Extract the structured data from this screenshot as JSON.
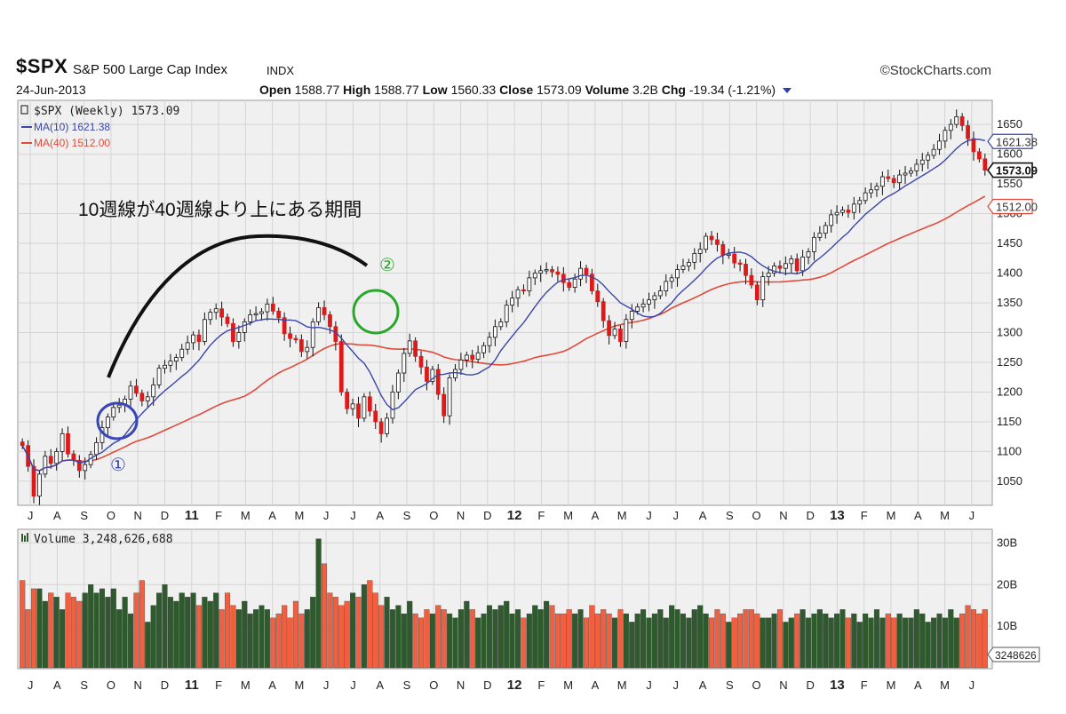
{
  "header": {
    "ticker": "$SPX",
    "name": "S&P 500 Large Cap Index",
    "exchange": "INDX",
    "brand": "©StockCharts.com",
    "date": "24-Jun-2013",
    "open_label": "Open",
    "open": "1588.77",
    "high_label": "High",
    "high": "1588.77",
    "low_label": "Low",
    "low": "1560.33",
    "close_label": "Close",
    "close": "1573.09",
    "volume_label": "Volume",
    "volume": "3.2B",
    "chg_label": "Chg",
    "chg": "-19.34 (-1.21%)"
  },
  "legend": {
    "price": "$SPX (Weekly) 1573.09",
    "ma10": "MA(10) 1621.38",
    "ma40": "MA(40) 1512.00",
    "volume": "Volume 3,248,626,688"
  },
  "annotations": {
    "text": "10週線が40週線より上にある期間",
    "marker1": "①",
    "marker2": "②"
  },
  "colors": {
    "up_candle": "#ffffff",
    "down_candle": "#dd1a1a",
    "ma10": "#3a46a8",
    "ma40": "#e04a3a",
    "vol_up": "#2e5a2e",
    "vol_down": "#f06040",
    "circle1": "#3a46b8",
    "circle2": "#2aa62a",
    "grid": "#d4d4d4",
    "panel_bg": "#f0f0f0"
  },
  "chart_data": {
    "type": "line",
    "title": "$SPX (Weekly) 1573.09",
    "y_ticks": [
      1050,
      1100,
      1150,
      1200,
      1250,
      1300,
      1350,
      1400,
      1450,
      1500,
      1550,
      1600,
      1650
    ],
    "y_range": [
      1020,
      1680
    ],
    "x_month_labels": [
      "J",
      "A",
      "S",
      "O",
      "N",
      "D",
      "11",
      "F",
      "M",
      "A",
      "M",
      "J",
      "J",
      "A",
      "S",
      "O",
      "N",
      "D",
      "12",
      "F",
      "M",
      "A",
      "M",
      "J",
      "J",
      "A",
      "S",
      "O",
      "N",
      "D",
      "13",
      "F",
      "M",
      "A",
      "M",
      "J"
    ],
    "last_value_tags": [
      {
        "label": "1621.38",
        "value": 1621.38,
        "series": "ma10"
      },
      {
        "label": "1573.09",
        "value": 1573.09,
        "series": "price"
      },
      {
        "label": "1512.00",
        "value": 1512.0,
        "series": "ma40"
      }
    ],
    "weekly_close": [
      1110,
      1075,
      1025,
      1062,
      1092,
      1080,
      1100,
      1130,
      1096,
      1085,
      1068,
      1078,
      1095,
      1115,
      1140,
      1158,
      1174,
      1178,
      1188,
      1210,
      1198,
      1185,
      1192,
      1212,
      1240,
      1245,
      1252,
      1258,
      1272,
      1283,
      1296,
      1285,
      1322,
      1334,
      1340,
      1326,
      1315,
      1285,
      1300,
      1318,
      1330,
      1332,
      1335,
      1348,
      1336,
      1325,
      1298,
      1290,
      1288,
      1268,
      1275,
      1318,
      1342,
      1330,
      1310,
      1285,
      1200,
      1172,
      1180,
      1156,
      1192,
      1168,
      1150,
      1130,
      1156,
      1200,
      1232,
      1265,
      1286,
      1260,
      1242,
      1218,
      1238,
      1196,
      1160,
      1224,
      1238,
      1254,
      1262,
      1255,
      1266,
      1278,
      1292,
      1310,
      1318,
      1346,
      1358,
      1372,
      1370,
      1392,
      1400,
      1404,
      1406,
      1402,
      1398,
      1384,
      1376,
      1390,
      1408,
      1398,
      1370,
      1352,
      1320,
      1295,
      1306,
      1285,
      1322,
      1336,
      1343,
      1348,
      1355,
      1362,
      1370,
      1386,
      1392,
      1406,
      1412,
      1418,
      1433,
      1440,
      1462,
      1456,
      1448,
      1430,
      1432,
      1417,
      1415,
      1396,
      1380,
      1355,
      1394,
      1400,
      1412,
      1408,
      1416,
      1424,
      1404,
      1427,
      1436,
      1460,
      1467,
      1480,
      1498,
      1502,
      1506,
      1502,
      1516,
      1522,
      1535,
      1540,
      1546,
      1562,
      1559,
      1552,
      1565,
      1568,
      1572,
      1583,
      1590,
      1598,
      1608,
      1622,
      1640,
      1650,
      1663,
      1648,
      1626,
      1604,
      1592,
      1573
    ],
    "volume_b": {
      "ticks": [
        "10B",
        "20B",
        "30B"
      ],
      "range": [
        0,
        32
      ],
      "last_tag": "3248626",
      "values": [
        21,
        14,
        19,
        19,
        16,
        18,
        17,
        14,
        18,
        17,
        16,
        18,
        20,
        18,
        19,
        17,
        19,
        14,
        17,
        13,
        18,
        21,
        11,
        15,
        18,
        20,
        17,
        16,
        18,
        17,
        18,
        15,
        17,
        16,
        18,
        14,
        18,
        15,
        14,
        16,
        13,
        14,
        15,
        14,
        12,
        13,
        15,
        12,
        16,
        13,
        14,
        17,
        31,
        25,
        18,
        17,
        15,
        16,
        18,
        17,
        20,
        21,
        18,
        15,
        17,
        14,
        15,
        13,
        16,
        13,
        12,
        14,
        13,
        15,
        14,
        13,
        12,
        14,
        16,
        14,
        12,
        13,
        15,
        14,
        15,
        16,
        13,
        14,
        12,
        13,
        15,
        14,
        16,
        15,
        13,
        13,
        14,
        13,
        14,
        12,
        15,
        13,
        14,
        13,
        12,
        14,
        13,
        11,
        13,
        14,
        12,
        13,
        14,
        12,
        15,
        14,
        13,
        12,
        14,
        15,
        13,
        12,
        14,
        13,
        11,
        12,
        13,
        14,
        14,
        13,
        12,
        12,
        13,
        14,
        11,
        12,
        13,
        14,
        12,
        13,
        14,
        13,
        12,
        13,
        14,
        12,
        13,
        11,
        13,
        12,
        14,
        12,
        13,
        12,
        13,
        12,
        12,
        14,
        13,
        11,
        12,
        13,
        12,
        14,
        12,
        13,
        15,
        14,
        13,
        14
      ]
    }
  }
}
